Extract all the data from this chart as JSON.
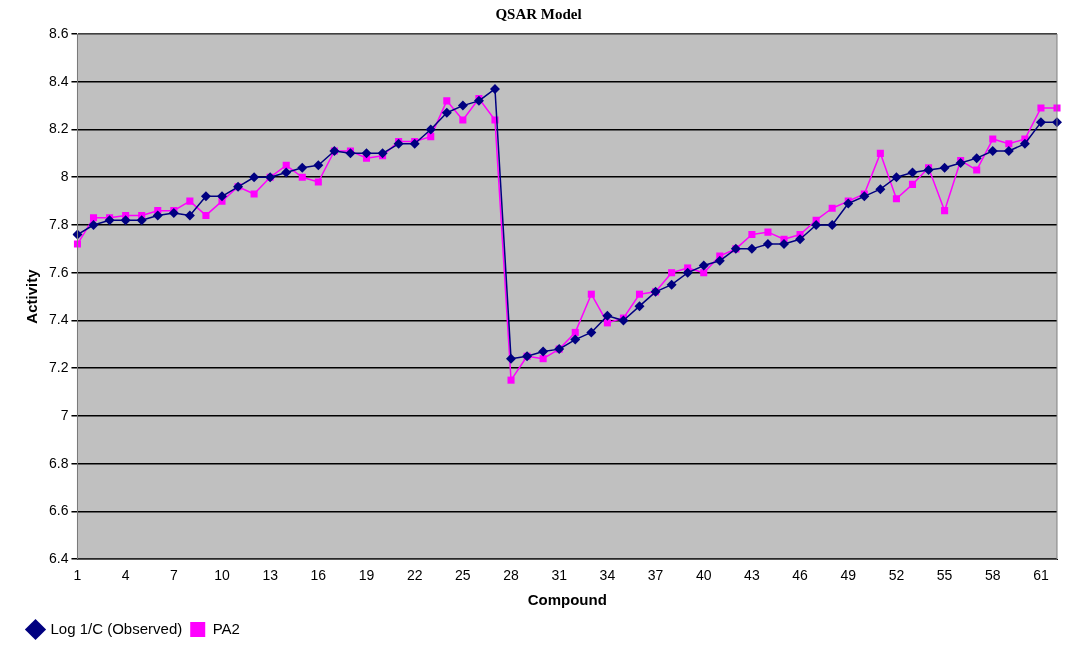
{
  "chart_data": {
    "type": "line",
    "title": "QSAR Model",
    "xlabel": "Compound",
    "ylabel": "Activity",
    "categories": [
      "1",
      null,
      null,
      "4",
      null,
      null,
      "7",
      null,
      null,
      "10",
      null,
      null,
      "13",
      null,
      null,
      "16",
      null,
      null,
      "19",
      null,
      null,
      "22",
      null,
      null,
      "25",
      null,
      null,
      "28",
      null,
      null,
      "31",
      null,
      null,
      "34",
      null,
      null,
      "37",
      null,
      null,
      "40",
      null,
      null,
      "43",
      null,
      null,
      "46",
      null,
      null,
      "49",
      null,
      null,
      "52",
      null,
      null,
      "55",
      null,
      null,
      "58",
      null,
      null,
      "61",
      null
    ],
    "series": [
      {
        "name": "Log 1/C (Observed)",
        "color": "#000080",
        "marker": "diamond",
        "values": [
          7.76,
          7.8,
          7.82,
          7.82,
          7.82,
          7.84,
          7.85,
          7.84,
          7.92,
          7.92,
          7.96,
          8.0,
          8.0,
          8.02,
          8.04,
          8.05,
          8.11,
          8.1,
          8.1,
          8.1,
          8.14,
          8.14,
          8.2,
          8.27,
          8.3,
          8.32,
          8.37,
          7.24,
          7.25,
          7.27,
          7.28,
          7.32,
          7.35,
          7.42,
          7.4,
          7.46,
          7.52,
          7.55,
          7.6,
          7.63,
          7.65,
          7.7,
          7.7,
          7.72,
          7.72,
          7.74,
          7.8,
          7.8,
          7.89,
          7.92,
          7.95,
          8.0,
          8.02,
          8.03,
          8.04,
          8.06,
          8.08,
          8.11,
          8.11,
          8.14,
          8.23,
          8.23
        ]
      },
      {
        "name": "PA2",
        "color": "#ff00ff",
        "marker": "square",
        "values": [
          7.72,
          7.83,
          7.83,
          7.84,
          7.84,
          7.86,
          7.86,
          7.9,
          7.84,
          7.9,
          7.96,
          7.93,
          8.0,
          8.05,
          8.0,
          7.98,
          8.11,
          8.11,
          8.08,
          8.09,
          8.15,
          8.15,
          8.17,
          8.32,
          8.24,
          8.33,
          8.24,
          7.15,
          7.25,
          7.24,
          7.28,
          7.35,
          7.51,
          7.39,
          7.41,
          7.51,
          7.52,
          7.6,
          7.62,
          7.6,
          7.67,
          7.7,
          7.76,
          7.77,
          7.74,
          7.76,
          7.82,
          7.87,
          7.9,
          7.93,
          8.1,
          7.91,
          7.97,
          8.04,
          7.86,
          8.07,
          8.03,
          8.16,
          8.14,
          8.16,
          8.29,
          8.29
        ]
      }
    ],
    "ylim": [
      6.4,
      8.6
    ],
    "yticks": [
      6.4,
      6.6,
      6.8,
      7,
      7.2,
      7.4,
      7.6,
      7.8,
      8,
      8.2,
      8.4,
      8.6
    ],
    "grid": "y",
    "legend": "bottom left"
  }
}
